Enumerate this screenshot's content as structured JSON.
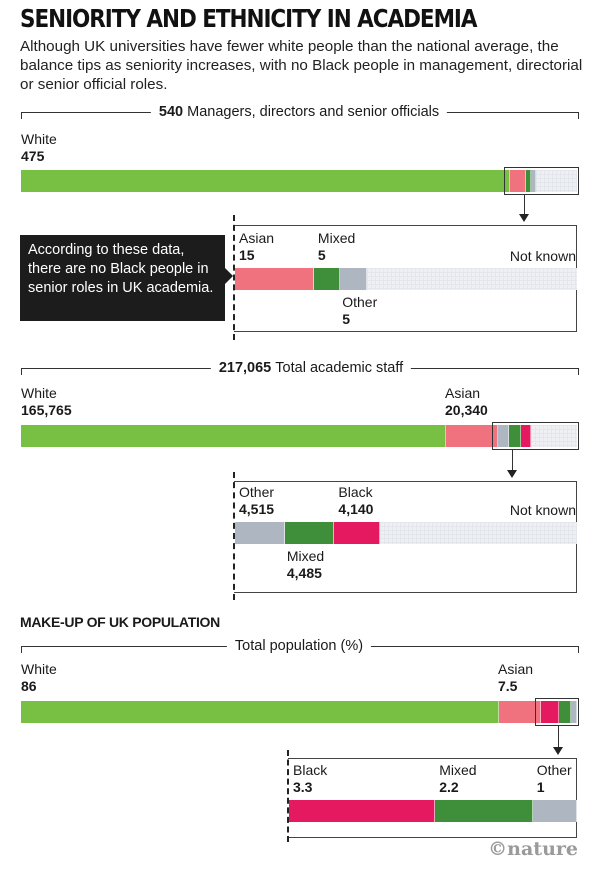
{
  "title": "SENIORITY AND ETHNICITY IN ACADEMIA",
  "subtitle": "Although UK universities have fewer white people than the national average, the balance tips as seniority increases, with no Black people in management, directorial or senior official roles.",
  "colors": {
    "White": "#77c043",
    "Asian": "#f0727f",
    "Mixed": "#3f8f3a",
    "Black": "#e5195f",
    "Other": "#adb6c1",
    "Not known": "#eef0f3"
  },
  "callout": "According to these data, there are no Black people in senior roles in UK academia.",
  "section_heading": "MAKE-UP OF UK POPULATION",
  "credit": "©nature",
  "chart_data": [
    {
      "type": "bar",
      "orientation": "horizontal-stacked",
      "title_number": "540",
      "title_text": "Managers, directors and senior officials",
      "total": 540,
      "categories": [
        "White",
        "Asian",
        "Mixed",
        "Other",
        "Not known"
      ],
      "values": [
        475,
        15,
        5,
        5,
        40
      ],
      "labels": {
        "White": {
          "name": "White",
          "value": "475"
        },
        "Asian": {
          "name": "Asian",
          "value": "15"
        },
        "Mixed": {
          "name": "Mixed",
          "value": "5"
        },
        "Other": {
          "name": "Other",
          "value": "5"
        },
        "Not known": {
          "name": "Not known",
          "value": ""
        }
      },
      "detail_categories": [
        "Asian",
        "Mixed",
        "Other",
        "Not known"
      ]
    },
    {
      "type": "bar",
      "orientation": "horizontal-stacked",
      "title_number": "217,065",
      "title_text": "Total academic staff",
      "total": 217065,
      "categories": [
        "White",
        "Asian",
        "Other",
        "Mixed",
        "Black",
        "Not known"
      ],
      "values": [
        165765,
        20340,
        4515,
        4485,
        4140,
        17820
      ],
      "labels": {
        "White": {
          "name": "White",
          "value": "165,765"
        },
        "Asian": {
          "name": "Asian",
          "value": "20,340"
        },
        "Other": {
          "name": "Other",
          "value": "4,515"
        },
        "Mixed": {
          "name": "Mixed",
          "value": "4,485"
        },
        "Black": {
          "name": "Black",
          "value": "4,140"
        },
        "Not known": {
          "name": "Not known",
          "value": ""
        }
      },
      "detail_categories": [
        "Other",
        "Mixed",
        "Black",
        "Not known"
      ]
    },
    {
      "type": "bar",
      "orientation": "horizontal-stacked",
      "title_number": "",
      "title_text": "Total population (%)",
      "total": 100,
      "categories": [
        "White",
        "Asian",
        "Black",
        "Mixed",
        "Other"
      ],
      "values": [
        86,
        7.5,
        3.3,
        2.2,
        1
      ],
      "labels": {
        "White": {
          "name": "White",
          "value": "86"
        },
        "Asian": {
          "name": "Asian",
          "value": "7.5"
        },
        "Black": {
          "name": "Black",
          "value": "3.3"
        },
        "Mixed": {
          "name": "Mixed",
          "value": "2.2"
        },
        "Other": {
          "name": "Other",
          "value": "1"
        }
      },
      "detail_categories": [
        "Black",
        "Mixed",
        "Other"
      ]
    }
  ]
}
